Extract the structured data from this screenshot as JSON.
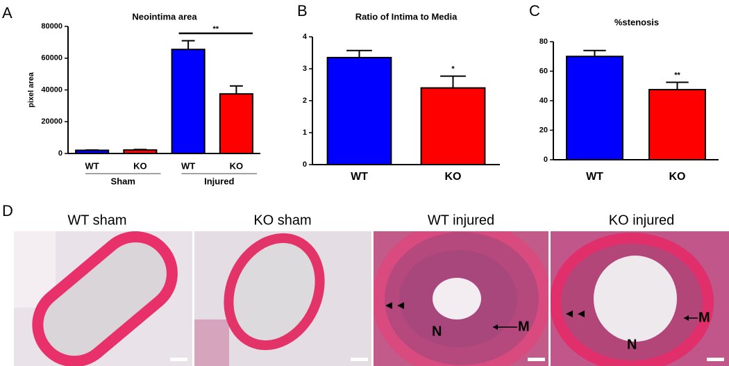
{
  "chart_data": [
    {
      "type": "bar",
      "panel": "A",
      "title": "Neointima area",
      "y_label": "pixel area",
      "categories": [
        "WT",
        "KO",
        "WT",
        "KO"
      ],
      "groups": [
        "Sham",
        "Injured"
      ],
      "values": [
        2000,
        2200,
        65500,
        37500
      ],
      "errors": [
        200,
        300,
        5500,
        5000
      ],
      "colors": [
        "#0000ff",
        "#ff0000",
        "#0000ff",
        "#ff0000"
      ],
      "significance": [
        null,
        null,
        null,
        "**"
      ],
      "ylim": [
        0,
        80000
      ],
      "yticks": [
        0,
        20000,
        40000,
        60000,
        80000
      ]
    },
    {
      "type": "bar",
      "panel": "B",
      "title": "Ratio of Intima to Media",
      "categories": [
        "WT",
        "KO"
      ],
      "values": [
        3.35,
        2.4
      ],
      "errors": [
        0.22,
        0.37
      ],
      "colors": [
        "#0000ff",
        "#ff0000"
      ],
      "significance": [
        null,
        "*"
      ],
      "ylim": [
        0,
        4
      ],
      "yticks": [
        0,
        1,
        2,
        3,
        4
      ]
    },
    {
      "type": "bar",
      "panel": "C",
      "title": "%stenosis",
      "categories": [
        "WT",
        "KO"
      ],
      "values": [
        70,
        47.5
      ],
      "errors": [
        4,
        5
      ],
      "colors": [
        "#0000ff",
        "#ff0000"
      ],
      "significance": [
        null,
        "**"
      ],
      "ylim": [
        0,
        80
      ],
      "yticks": [
        0,
        20,
        40,
        60,
        80
      ]
    }
  ],
  "micrographs": {
    "panel": "D",
    "images": [
      {
        "title": "WT sham"
      },
      {
        "title": "KO sham"
      },
      {
        "title": "WT injured",
        "labels": [
          "N",
          "M"
        ]
      },
      {
        "title": "KO injured",
        "labels": [
          "N",
          "M"
        ]
      }
    ]
  }
}
